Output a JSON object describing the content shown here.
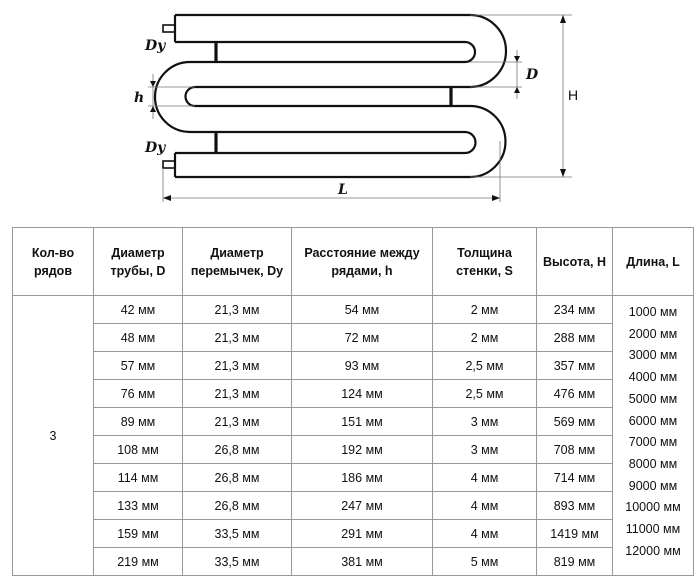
{
  "diagram": {
    "labels": {
      "dy_top": "Dy",
      "dy_bottom": "Dy",
      "d": "D",
      "h": "h",
      "height": "H",
      "length": "L"
    }
  },
  "table": {
    "headers": [
      "Кол-во рядов",
      "Диаметр трубы, D",
      "Диаметр перемычек, Dy",
      "Расстояние между рядами, h",
      "Толщина стенки, S",
      "Высота, H",
      "Длина, L"
    ],
    "rows_count": "3",
    "rows": [
      [
        "42 мм",
        "21,3 мм",
        "54 мм",
        "2 мм",
        "234 мм"
      ],
      [
        "48 мм",
        "21,3 мм",
        "72 мм",
        "2 мм",
        "288 мм"
      ],
      [
        "57 мм",
        "21,3 мм",
        "93 мм",
        "2,5 мм",
        "357 мм"
      ],
      [
        "76 мм",
        "21,3 мм",
        "124 мм",
        "2,5 мм",
        "476 мм"
      ],
      [
        "89 мм",
        "21,3 мм",
        "151 мм",
        "3 мм",
        "569 мм"
      ],
      [
        "108 мм",
        "26,8 мм",
        "192 мм",
        "3 мм",
        "708 мм"
      ],
      [
        "114 мм",
        "26,8 мм",
        "186 мм",
        "4 мм",
        "714 мм"
      ],
      [
        "133 мм",
        "26,8 мм",
        "247 мм",
        "4 мм",
        "893 мм"
      ],
      [
        "159 мм",
        "33,5 мм",
        "291 мм",
        "4 мм",
        "1419 мм"
      ],
      [
        "219 мм",
        "33,5 мм",
        "381 мм",
        "5 мм",
        "819 мм"
      ]
    ],
    "lengths": [
      "1000 мм",
      "2000 мм",
      "3000 мм",
      "4000 мм",
      "5000 мм",
      "6000 мм",
      "7000 мм",
      "8000 мм",
      "9000 мм",
      "10000 мм",
      "11000 мм",
      "12000 мм"
    ]
  }
}
